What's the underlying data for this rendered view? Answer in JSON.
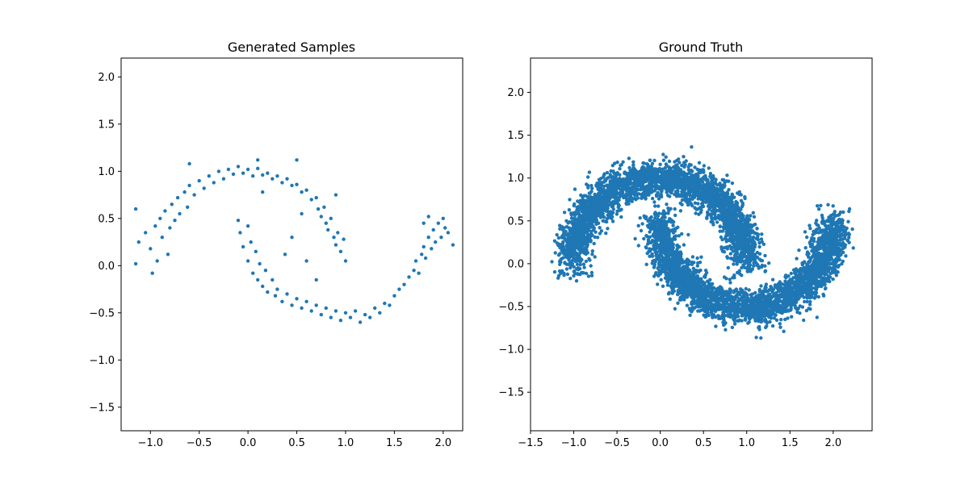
{
  "chart_data": [
    {
      "type": "scatter",
      "title": "Generated Samples",
      "xlabel": "",
      "ylabel": "",
      "xlim": [
        -1.3,
        2.2
      ],
      "ylim": [
        -1.75,
        2.2
      ],
      "xticks": [
        -1.0,
        -0.5,
        0.0,
        0.5,
        1.0,
        1.5,
        2.0
      ],
      "xtick_labels": [
        "−1.0",
        "−0.5",
        "0.0",
        "0.5",
        "1.0",
        "1.5",
        "2.0"
      ],
      "yticks": [
        -1.5,
        -1.0,
        -0.5,
        0.0,
        0.5,
        1.0,
        1.5,
        2.0
      ],
      "ytick_labels": [
        "−1.5",
        "−1.0",
        "−0.5",
        "0.0",
        "0.5",
        "1.0",
        "1.5",
        "2.0"
      ],
      "grid": false,
      "color": "#1f77b4",
      "series": [
        {
          "points": [
            [
              -1.15,
              0.02
            ],
            [
              -1.12,
              0.25
            ],
            [
              -1.05,
              0.35
            ],
            [
              -1.0,
              0.18
            ],
            [
              -0.95,
              0.42
            ],
            [
              -0.93,
              0.05
            ],
            [
              -0.9,
              0.5
            ],
            [
              -0.88,
              0.3
            ],
            [
              -0.85,
              0.58
            ],
            [
              -0.82,
              0.12
            ],
            [
              -0.8,
              0.4
            ],
            [
              -0.78,
              0.65
            ],
            [
              -0.75,
              0.48
            ],
            [
              -0.72,
              0.72
            ],
            [
              -0.7,
              0.55
            ],
            [
              -0.65,
              0.78
            ],
            [
              -0.62,
              0.62
            ],
            [
              -0.6,
              0.85
            ],
            [
              -0.55,
              0.75
            ],
            [
              -0.5,
              0.9
            ],
            [
              -0.45,
              0.82
            ],
            [
              -0.4,
              0.95
            ],
            [
              -0.35,
              0.88
            ],
            [
              -0.3,
              1.0
            ],
            [
              -0.25,
              0.92
            ],
            [
              -0.2,
              1.02
            ],
            [
              -0.15,
              0.97
            ],
            [
              -0.1,
              1.05
            ],
            [
              -0.05,
              0.98
            ],
            [
              0.0,
              1.02
            ],
            [
              0.05,
              0.95
            ],
            [
              0.1,
              1.03
            ],
            [
              0.15,
              0.96
            ],
            [
              0.2,
              0.98
            ],
            [
              0.25,
              0.92
            ],
            [
              0.3,
              0.95
            ],
            [
              0.35,
              0.88
            ],
            [
              0.4,
              0.92
            ],
            [
              0.45,
              0.85
            ],
            [
              0.5,
              0.86
            ],
            [
              0.55,
              0.78
            ],
            [
              0.6,
              0.8
            ],
            [
              0.65,
              0.7
            ],
            [
              0.7,
              0.72
            ],
            [
              0.72,
              0.6
            ],
            [
              0.75,
              0.52
            ],
            [
              0.78,
              0.62
            ],
            [
              0.8,
              0.45
            ],
            [
              0.82,
              0.38
            ],
            [
              0.85,
              0.5
            ],
            [
              0.88,
              0.3
            ],
            [
              0.9,
              0.22
            ],
            [
              0.92,
              0.35
            ],
            [
              0.95,
              0.15
            ],
            [
              0.98,
              0.28
            ],
            [
              1.0,
              0.05
            ],
            [
              -0.1,
              0.48
            ],
            [
              -0.08,
              0.35
            ],
            [
              -0.05,
              0.2
            ],
            [
              0.0,
              0.42
            ],
            [
              0.0,
              0.05
            ],
            [
              0.03,
              0.25
            ],
            [
              0.05,
              -0.08
            ],
            [
              0.08,
              0.15
            ],
            [
              0.1,
              -0.15
            ],
            [
              0.12,
              0.02
            ],
            [
              0.15,
              -0.22
            ],
            [
              0.18,
              -0.05
            ],
            [
              0.2,
              -0.28
            ],
            [
              0.25,
              -0.15
            ],
            [
              0.28,
              -0.32
            ],
            [
              0.3,
              -0.25
            ],
            [
              0.35,
              -0.38
            ],
            [
              0.4,
              -0.3
            ],
            [
              0.45,
              -0.42
            ],
            [
              0.5,
              -0.35
            ],
            [
              0.55,
              -0.45
            ],
            [
              0.6,
              -0.38
            ],
            [
              0.65,
              -0.48
            ],
            [
              0.7,
              -0.42
            ],
            [
              0.75,
              -0.52
            ],
            [
              0.8,
              -0.45
            ],
            [
              0.85,
              -0.55
            ],
            [
              0.9,
              -0.48
            ],
            [
              0.95,
              -0.58
            ],
            [
              1.0,
              -0.5
            ],
            [
              1.05,
              -0.55
            ],
            [
              1.1,
              -0.48
            ],
            [
              1.15,
              -0.6
            ],
            [
              1.2,
              -0.52
            ],
            [
              1.25,
              -0.55
            ],
            [
              1.3,
              -0.45
            ],
            [
              1.35,
              -0.5
            ],
            [
              1.4,
              -0.4
            ],
            [
              1.45,
              -0.42
            ],
            [
              1.5,
              -0.32
            ],
            [
              1.55,
              -0.25
            ],
            [
              1.6,
              -0.2
            ],
            [
              1.65,
              -0.12
            ],
            [
              1.7,
              -0.05
            ],
            [
              1.72,
              0.05
            ],
            [
              1.75,
              -0.08
            ],
            [
              1.78,
              0.12
            ],
            [
              1.8,
              0.2
            ],
            [
              1.82,
              0.08
            ],
            [
              1.85,
              0.3
            ],
            [
              1.88,
              0.18
            ],
            [
              1.9,
              0.38
            ],
            [
              1.92,
              0.25
            ],
            [
              1.95,
              0.45
            ],
            [
              1.98,
              0.3
            ],
            [
              2.0,
              0.5
            ],
            [
              2.05,
              0.35
            ],
            [
              2.1,
              0.22
            ],
            [
              1.8,
              0.45
            ],
            [
              1.85,
              0.52
            ],
            [
              2.02,
              0.4
            ],
            [
              0.38,
              0.12
            ],
            [
              0.6,
              0.05
            ],
            [
              0.45,
              0.3
            ],
            [
              0.7,
              -0.15
            ],
            [
              0.55,
              0.55
            ],
            [
              0.9,
              0.75
            ],
            [
              0.15,
              0.78
            ],
            [
              0.5,
              1.12
            ],
            [
              0.1,
              1.12
            ],
            [
              -0.6,
              1.08
            ],
            [
              -0.98,
              -0.08
            ],
            [
              -1.15,
              0.6
            ]
          ]
        }
      ]
    },
    {
      "type": "scatter",
      "title": "Ground Truth",
      "xlabel": "",
      "ylabel": "",
      "xlim": [
        -1.5,
        2.45
      ],
      "ylim": [
        -1.95,
        2.4
      ],
      "xticks": [
        -1.5,
        -1.0,
        -0.5,
        0.0,
        0.5,
        1.0,
        1.5,
        2.0
      ],
      "xtick_labels": [
        "−1.5",
        "−1.0",
        "−0.5",
        "0.0",
        "0.5",
        "1.0",
        "1.5",
        "2.0"
      ],
      "yticks": [
        -1.5,
        -1.0,
        -0.5,
        0.0,
        0.5,
        1.0,
        1.5,
        2.0
      ],
      "ytick_labels": [
        "−1.5",
        "−1.0",
        "−0.5",
        "0.0",
        "0.5",
        "1.0",
        "1.5",
        "2.0"
      ],
      "grid": false,
      "color": "#1f77b4",
      "series": [
        {
          "distribution": "two interleaving half moons",
          "upper_moon_center": [
            0.0,
            0.0
          ],
          "lower_moon_center": [
            1.0,
            0.5
          ],
          "radius": 1.0,
          "noise_std": 0.1,
          "n_points": 6000
        }
      ]
    }
  ]
}
